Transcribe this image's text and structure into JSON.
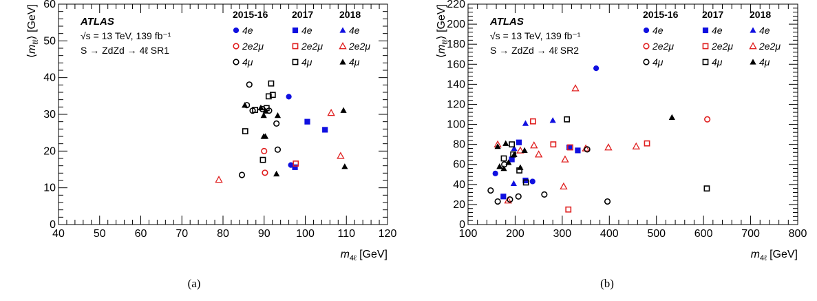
{
  "chart_data": [
    {
      "type": "scatter",
      "panel_caption": "(a)",
      "xlabel": "m4ℓ [GeV]",
      "ylabel": "⟨mℓℓ⟩ [GeV]",
      "xlim": [
        40,
        120
      ],
      "ylim": [
        0,
        60
      ],
      "xticks": [
        "40",
        "50",
        "60",
        "70",
        "80",
        "90",
        "100",
        "110",
        "120"
      ],
      "yticks": [
        "0",
        "10",
        "20",
        "30",
        "40",
        "50",
        "60"
      ],
      "experiment": "ATLAS",
      "energy_line": "√s = 13 TeV, 139 fb⁻¹",
      "process_line": "S → ZdZd → 4ℓ SR1",
      "legend": {
        "columns": [
          "2015-16",
          "2017",
          "2018"
        ],
        "rows": [
          "4e",
          "2e2μ",
          "4μ"
        ]
      },
      "series": [
        {
          "name": "4e 2015-16",
          "color": "#1010e0",
          "marker": "filled-circle",
          "x": [
            96,
            96.5
          ],
          "y": [
            34.8,
            16.2
          ]
        },
        {
          "name": "4e 2017",
          "color": "#1010e0",
          "marker": "filled-square",
          "x": [
            97.5,
            100.5,
            104.8
          ],
          "y": [
            15.6,
            28.0,
            25.8
          ]
        },
        {
          "name": "2e2μ 2015-16",
          "color": "#e02020",
          "marker": "open-circle",
          "x": [
            90,
            90.2
          ],
          "y": [
            20.0,
            14.1
          ]
        },
        {
          "name": "2e2μ 2017",
          "color": "#e02020",
          "marker": "open-square",
          "x": [
            97.7
          ],
          "y": [
            16.6
          ]
        },
        {
          "name": "2e2μ 2018",
          "color": "#e02020",
          "marker": "open-triangle",
          "x": [
            79,
            106.3,
            108.6
          ],
          "y": [
            12.2,
            30.4,
            18.7
          ]
        },
        {
          "name": "4μ 2015-16",
          "color": "#000000",
          "marker": "open-circle",
          "x": [
            84.6,
            85.8,
            86.4,
            87.2,
            89.6,
            91.2,
            93.0,
            93.3
          ],
          "y": [
            13.5,
            32.5,
            38.1,
            31.0,
            31.4,
            31.0,
            27.5,
            20.4
          ]
        },
        {
          "name": "4μ 2017",
          "color": "#000000",
          "marker": "open-square",
          "x": [
            85.4,
            87.8,
            89.7,
            90.6,
            91.1,
            91.7,
            92.1
          ],
          "y": [
            25.4,
            31.2,
            17.6,
            31.7,
            34.9,
            38.4,
            35.3
          ]
        },
        {
          "name": "4μ 2018",
          "color": "#000000",
          "marker": "filled-triangle",
          "x": [
            85.3,
            89.2,
            89.9,
            89.9,
            90.3,
            90.4,
            93.0,
            93.3,
            109.3,
            109.6
          ],
          "y": [
            32.5,
            31.8,
            24.0,
            29.7,
            24.0,
            30.9,
            13.8,
            29.7,
            31.1,
            15.8
          ]
        }
      ]
    },
    {
      "type": "scatter",
      "panel_caption": "(b)",
      "xlabel": "m4ℓ [GeV]",
      "ylabel": "⟨mℓℓ⟩ [GeV]",
      "xlim": [
        100,
        800
      ],
      "ylim": [
        0,
        220
      ],
      "xticks": [
        "100",
        "200",
        "300",
        "400",
        "500",
        "600",
        "700",
        "800"
      ],
      "yticks": [
        "0",
        "20",
        "40",
        "60",
        "80",
        "100",
        "120",
        "140",
        "160",
        "180",
        "200",
        "220"
      ],
      "experiment": "ATLAS",
      "energy_line": "√s = 13 TeV, 139 fb⁻¹",
      "process_line": "S → ZdZd → 4ℓ SR2",
      "legend": {
        "columns": [
          "2015-16",
          "2017",
          "2018"
        ],
        "rows": [
          "4e",
          "2e2μ",
          "4μ"
        ]
      },
      "series": [
        {
          "name": "4e 2015-16",
          "color": "#1010e0",
          "marker": "filled-circle",
          "x": [
            158,
            237,
            372
          ],
          "y": [
            51,
            43,
            156
          ]
        },
        {
          "name": "4e 2017",
          "color": "#1010e0",
          "marker": "filled-square",
          "x": [
            175,
            193,
            208,
            222,
            315,
            333
          ],
          "y": [
            28,
            65,
            82,
            44,
            77,
            74
          ]
        },
        {
          "name": "4e 2018",
          "color": "#1010e0",
          "marker": "filled-triangle",
          "x": [
            197,
            198,
            222,
            280
          ],
          "y": [
            41,
            76,
            101,
            104
          ]
        },
        {
          "name": "2e2μ 2015-16",
          "color": "#e02020",
          "marker": "open-circle",
          "x": [
            608
          ],
          "y": [
            105
          ]
        },
        {
          "name": "2e2μ 2017",
          "color": "#e02020",
          "marker": "open-square",
          "x": [
            238,
            281,
            313,
            317,
            480
          ],
          "y": [
            103,
            80,
            15,
            77,
            81
          ]
        },
        {
          "name": "2e2μ 2018",
          "color": "#e02020",
          "marker": "open-triangle",
          "x": [
            163,
            185,
            211,
            240,
            250,
            303,
            306,
            328,
            350,
            398,
            457
          ],
          "y": [
            80,
            24,
            74,
            79,
            70,
            38,
            65,
            136,
            76,
            77,
            78
          ]
        },
        {
          "name": "4μ 2015-16",
          "color": "#000000",
          "marker": "open-circle",
          "x": [
            148,
            163,
            177,
            189,
            207,
            262,
            353,
            396
          ],
          "y": [
            34,
            23,
            60,
            25,
            28,
            30,
            75,
            23
          ]
        },
        {
          "name": "4μ 2017",
          "color": "#000000",
          "marker": "open-square",
          "x": [
            176,
            193,
            196,
            209,
            223,
            310,
            607
          ],
          "y": [
            66,
            80,
            70,
            54,
            42,
            105,
            36
          ]
        },
        {
          "name": "4μ 2018",
          "color": "#000000",
          "marker": "filled-triangle",
          "x": [
            163,
            167,
            176,
            180,
            186,
            198,
            211,
            220,
            533
          ],
          "y": [
            78,
            58,
            56,
            81,
            62,
            70,
            57,
            74,
            107
          ]
        }
      ]
    }
  ]
}
